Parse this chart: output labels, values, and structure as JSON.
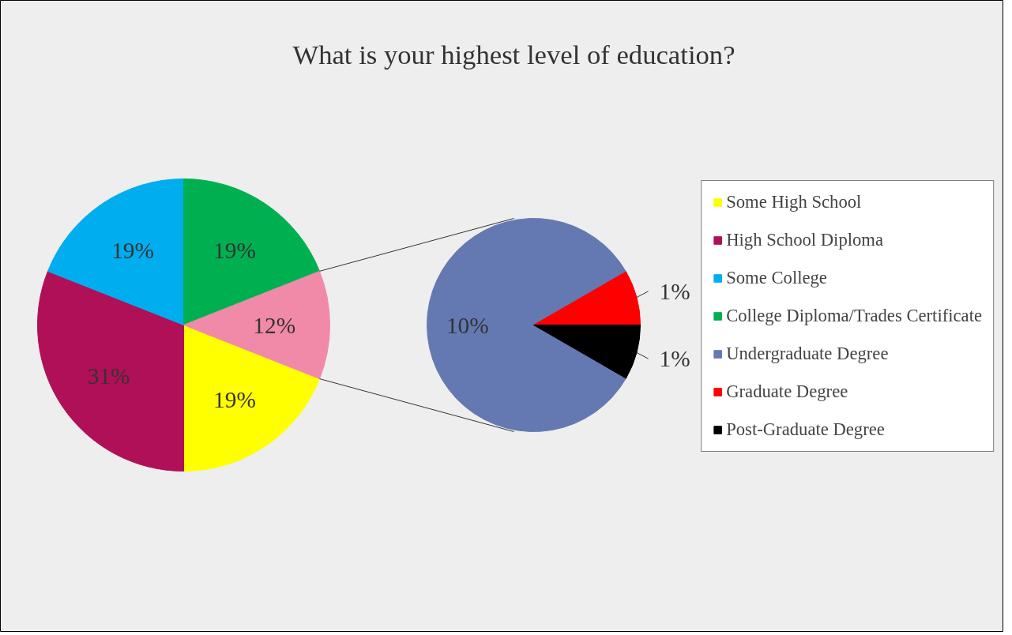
{
  "chart_data": [
    {
      "type": "pie",
      "title": "What is your highest level of education?",
      "categories": [
        "Some High School",
        "High School Diploma",
        "Some College",
        "College Diploma/Trades Certificate",
        null
      ],
      "values": [
        19,
        31,
        19,
        19,
        12
      ],
      "colors": [
        "#ffff00",
        "#b01057",
        "#00adef",
        "#00b050",
        "#f08aa8"
      ],
      "value_labels": [
        "19%",
        "31%",
        "19%",
        "19%",
        "12%"
      ],
      "legend": "right"
    },
    {
      "type": "pie",
      "categories": [
        "Undergraduate Degree",
        "Graduate Degree",
        "Post-Graduate Degree"
      ],
      "values": [
        10,
        1,
        1
      ],
      "colors": [
        "#6479b2",
        "#ff0000",
        "#000000"
      ],
      "value_labels": [
        "10%",
        "1%",
        "1%"
      ],
      "legend": "right"
    }
  ]
}
